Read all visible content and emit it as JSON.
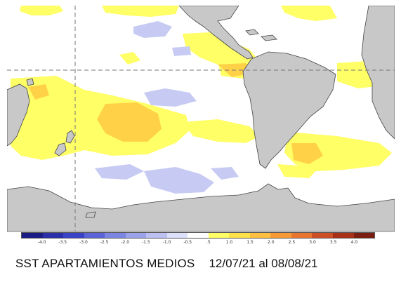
{
  "caption": {
    "title": "SST APARTAMIENTOS MEDIOS",
    "dates": "12/07/21 al 08/08/21"
  },
  "legend": {
    "tick_labels": [
      "-4.0",
      "-3.5",
      "-3.0",
      "-2.5",
      "-2.0",
      "-1.5",
      "-1.0",
      "-0.5",
      ".5",
      "1.0",
      "1.5",
      "2.0",
      "2.5",
      "3.0",
      "3.5",
      "4.0"
    ],
    "colors": [
      "#1b1b86",
      "#2a2ea8",
      "#3a43c8",
      "#5a63d8",
      "#7b85e2",
      "#9aa2ea",
      "#bcc1f2",
      "#dde0fa",
      "#ffffff",
      "#ffff66",
      "#ffe24a",
      "#ffbf40",
      "#f79a35",
      "#e8752c",
      "#cc4e22",
      "#a82f18",
      "#7a1c10"
    ]
  },
  "map": {
    "land_color": "#c8c8c8",
    "coastline_color": "#444444",
    "gridline_color": "#777777",
    "warm_color": "#ffff66",
    "hot_color": "#ffcc44",
    "cold_color": "#c7cbf3"
  }
}
